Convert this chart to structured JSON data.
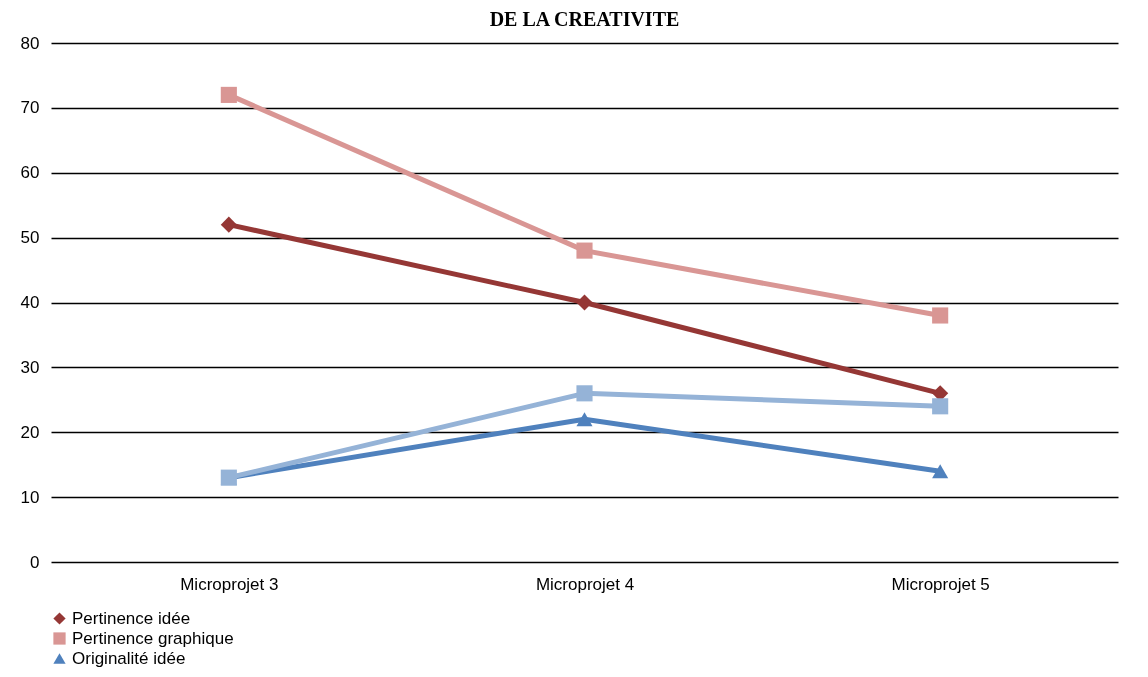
{
  "chart_data": {
    "type": "line",
    "title": "DE LA CREATIVITE",
    "categories": [
      "Microprojet 3",
      "Microprojet 4",
      "Microprojet 5"
    ],
    "series": [
      {
        "name": "Pertinence idée",
        "color": "#953735",
        "marker": "diamond",
        "values": [
          52,
          40,
          26
        ]
      },
      {
        "name": "Pertinence graphique",
        "color": "#d99694",
        "marker": "square",
        "values": [
          72,
          48,
          38
        ]
      },
      {
        "name": "Originalité idée",
        "color": "#4f81bd",
        "marker": "triangle",
        "values": [
          13,
          22,
          14
        ]
      },
      {
        "color": "#95b3d7",
        "marker": "square",
        "values": [
          13,
          26,
          24
        ]
      }
    ],
    "ylim": [
      0,
      80
    ],
    "yticks": [
      0,
      10,
      20,
      30,
      40,
      50,
      60,
      70,
      80
    ],
    "grid": "y",
    "legend": "bottom",
    "line_style": "solid"
  }
}
